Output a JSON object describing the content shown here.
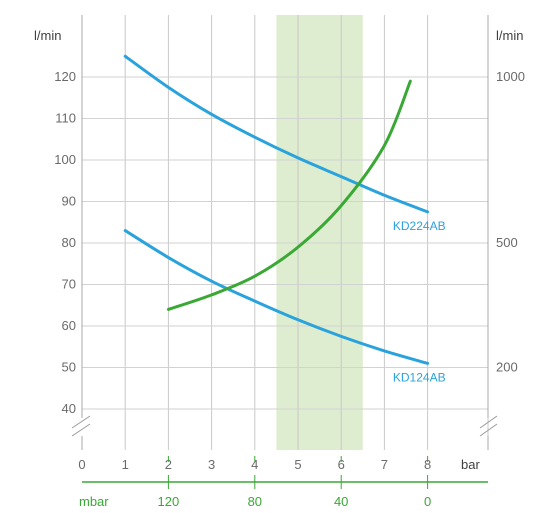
{
  "chart_data": {
    "type": "line",
    "grid": true,
    "x_axis": {
      "unit": "bar",
      "ticks": [
        0,
        1,
        2,
        3,
        4,
        5,
        6,
        7,
        8
      ],
      "range": [
        0,
        9
      ]
    },
    "left_axis": {
      "unit": "l/min",
      "ticks": [
        40,
        50,
        60,
        70,
        80,
        90,
        100,
        110,
        120
      ],
      "range": [
        35,
        128
      ],
      "axis_break": true
    },
    "right_axis": {
      "unit": "l/min",
      "tick_labels": [
        "200",
        "500",
        "1000"
      ],
      "tick_positions_left_units": [
        50,
        80,
        120
      ],
      "axis_break": true
    },
    "secondary_x_axis": {
      "unit": "mbar",
      "tick_labels": [
        "120",
        "80",
        "40",
        "0"
      ],
      "tick_positions_bar": [
        2,
        4,
        6,
        8
      ],
      "color": "#3aa835"
    },
    "highlight_band": {
      "x_from": 4.5,
      "x_to": 6.5,
      "color": "#deedd0"
    },
    "series": [
      {
        "name": "KD224AB",
        "axis": "left",
        "color": "#2aa3dc",
        "points": [
          [
            1,
            125
          ],
          [
            2,
            117.5
          ],
          [
            3,
            111
          ],
          [
            4,
            105.5
          ],
          [
            5,
            100.5
          ],
          [
            6,
            96
          ],
          [
            7,
            91.5
          ],
          [
            8,
            87.5
          ]
        ]
      },
      {
        "name": "KD124AB",
        "axis": "left",
        "color": "#2aa3dc",
        "points": [
          [
            1,
            83
          ],
          [
            2,
            76.5
          ],
          [
            3,
            70.8
          ],
          [
            4,
            66
          ],
          [
            5,
            61.5
          ],
          [
            6,
            57.5
          ],
          [
            7,
            54
          ],
          [
            8,
            51
          ]
        ]
      },
      {
        "name": "",
        "axis": "mbar",
        "color": "#3aa835",
        "points": [
          [
            2,
            64
          ],
          [
            3,
            67.5
          ],
          [
            4,
            72
          ],
          [
            5,
            79
          ],
          [
            6,
            89
          ],
          [
            7,
            103.5
          ],
          [
            7.6,
            119
          ]
        ]
      }
    ],
    "labels": [
      {
        "text": "KD224AB",
        "series": 0
      },
      {
        "text": "KD124AB",
        "series": 1
      }
    ]
  }
}
